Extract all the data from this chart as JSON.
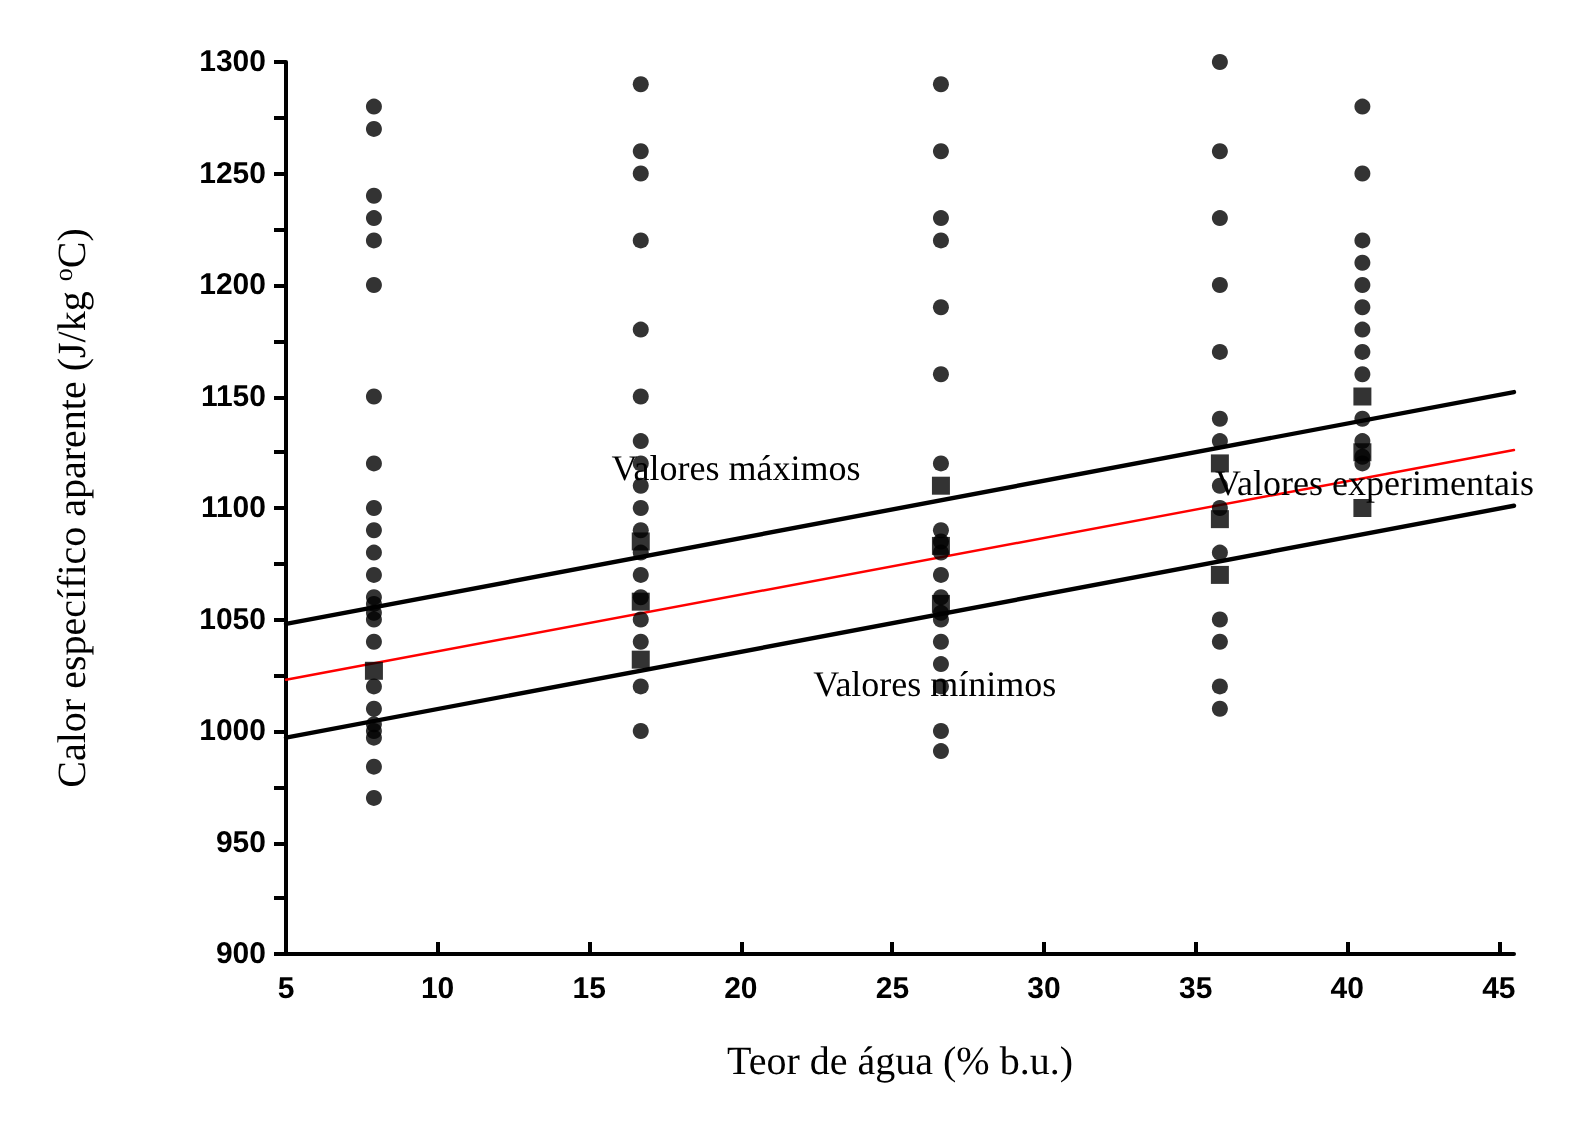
{
  "chart_data": {
    "type": "scatter",
    "xlabel": "Teor de água (% b.u.)",
    "ylabel": "Calor específico aparente (J/kg $^{o}$C)",
    "xlim": [
      5,
      45.5
    ],
    "xticks": [
      5,
      10,
      15,
      20,
      25,
      30,
      35,
      40,
      45
    ],
    "ylim": [
      900,
      1300
    ],
    "yticks": [
      900,
      {
        "value": 925,
        "label": null
      },
      950,
      {
        "value": 975,
        "label": null
      },
      1000,
      {
        "value": 1025,
        "label": null
      },
      1050,
      {
        "value": 1075,
        "label": null
      },
      1100,
      {
        "value": 1125,
        "label": null
      },
      1150,
      {
        "value": 1175,
        "label": null
      },
      1200,
      {
        "value": 1225,
        "label": null
      },
      1250,
      {
        "value": 1275,
        "label": null
      },
      1300
    ],
    "grid": false,
    "series": [
      {
        "type": "scatter",
        "marker": "circle",
        "color": "#000000",
        "x": [
          7.9,
          7.9,
          7.9,
          7.9,
          7.9,
          7.9,
          7.9,
          7.9,
          7.9,
          7.9,
          7.9,
          7.9,
          7.9,
          7.9,
          7.9,
          7.9,
          7.9,
          7.9,
          7.9,
          7.9,
          7.9,
          7.9,
          7.9,
          7.9,
          16.7,
          16.7,
          16.7,
          16.7,
          16.7,
          16.7,
          16.7,
          16.7,
          16.7,
          16.7,
          16.7,
          16.7,
          16.7,
          16.7,
          16.7,
          16.7,
          16.7,
          16.7,
          26.6,
          26.6,
          26.6,
          26.6,
          26.6,
          26.6,
          26.6,
          26.6,
          26.6,
          26.6,
          26.6,
          26.6,
          26.6,
          26.6,
          26.6,
          26.6,
          26.6,
          26.6,
          26.6,
          35.8,
          35.8,
          35.8,
          35.8,
          35.8,
          35.8,
          35.8,
          35.8,
          35.8,
          35.8,
          35.8,
          35.8,
          35.8,
          35.8,
          40.5,
          40.5,
          40.5,
          40.5,
          40.5,
          40.5,
          40.5,
          40.5,
          40.5,
          40.5,
          40.5,
          40.5,
          40.5
        ],
        "values": [
          1280,
          1270,
          1240,
          1230,
          1220,
          1200,
          1150,
          1120,
          1100,
          1090,
          1080,
          1070,
          1060,
          1057,
          1053,
          1050,
          1040,
          1020,
          1010,
          1003,
          1000,
          997,
          984,
          970,
          1290,
          1260,
          1250,
          1220,
          1180,
          1150,
          1130,
          1120,
          1110,
          1100,
          1090,
          1080,
          1070,
          1060,
          1050,
          1040,
          1020,
          1000,
          1290,
          1260,
          1230,
          1220,
          1190,
          1160,
          1120,
          1090,
          1085,
          1080,
          1070,
          1060,
          1053,
          1050,
          1040,
          1030,
          1020,
          1000,
          991,
          1300,
          1260,
          1230,
          1200,
          1170,
          1140,
          1130,
          1110,
          1100,
          1080,
          1050,
          1040,
          1020,
          1010,
          1280,
          1250,
          1220,
          1210,
          1200,
          1190,
          1180,
          1170,
          1160,
          1140,
          1130,
          1123,
          1120
        ]
      },
      {
        "type": "scatter",
        "marker": "square",
        "color": "#000000",
        "x": [
          7.9,
          16.7,
          16.7,
          16.7,
          26.6,
          26.6,
          26.6,
          35.8,
          35.8,
          35.8,
          40.5,
          40.5,
          40.5
        ],
        "values": [
          1027,
          1085,
          1058,
          1032,
          1110,
          1083,
          1057,
          1120,
          1095,
          1070,
          1150,
          1125,
          1100
        ]
      },
      {
        "type": "line",
        "marker": "none",
        "color": "#000000",
        "x": [
          5,
          45.5
        ],
        "values": [
          1048,
          1152
        ]
      },
      {
        "type": "line",
        "marker": "none",
        "color": "#ff0000",
        "x": [
          5,
          45.5
        ],
        "values": [
          1023,
          1126
        ]
      },
      {
        "type": "line",
        "marker": "none",
        "color": "#000000",
        "x": [
          5,
          45.5
        ],
        "values": [
          997,
          1101
        ]
      }
    ],
    "annotations": [
      "Valores máximos",
      {
        "text": "Valores experimentais",
        "x": 40.9,
        "y": 1111
      },
      {
        "text": "Valores mínimos",
        "x": 26.4,
        "y": 1021
      }
    ]
  }
}
